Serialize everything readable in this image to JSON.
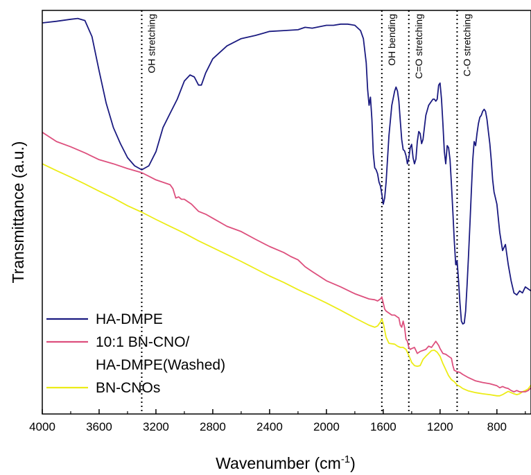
{
  "chart_data": {
    "type": "line",
    "xlabel_main": "Wavenumber (cm",
    "xlabel_sup": "-1",
    "xlabel_close": ")",
    "ylabel": "Transmittance (a.u.)",
    "xlim": [
      4000,
      560
    ],
    "x_reversed": true,
    "ylim": [
      0,
      100
    ],
    "y_ticks_shown": false,
    "x_ticks": [
      4000,
      3600,
      3200,
      2800,
      2400,
      2000,
      1600,
      1200,
      800
    ],
    "x_tick_labels": [
      "4000",
      "3600",
      "3200",
      "2800",
      "2400",
      "2000",
      "1600",
      "1200",
      "800"
    ],
    "legend_position": "bottom-left",
    "annotations": [
      {
        "x": 3300,
        "label": "OH stretching"
      },
      {
        "x": 1610,
        "label": "OH bending"
      },
      {
        "x": 1420,
        "label": "C=O stretching"
      },
      {
        "x": 1080,
        "label": "C-O stretching"
      }
    ],
    "series": [
      {
        "name": "HA-DMPE",
        "legend_lines": [
          "HA-DMPE"
        ],
        "color": "#1a1a80",
        "x": [
          4000,
          3900,
          3800,
          3750,
          3700,
          3650,
          3600,
          3550,
          3500,
          3450,
          3400,
          3350,
          3300,
          3250,
          3200,
          3150,
          3100,
          3050,
          3000,
          2960,
          2930,
          2900,
          2880,
          2850,
          2800,
          2700,
          2600,
          2500,
          2400,
          2300,
          2200,
          2150,
          2100,
          2000,
          1950,
          1900,
          1850,
          1800,
          1760,
          1740,
          1720,
          1710,
          1700,
          1690,
          1680,
          1670,
          1660,
          1650,
          1640,
          1630,
          1620,
          1610,
          1600,
          1590,
          1580,
          1560,
          1540,
          1520,
          1510,
          1500,
          1490,
          1480,
          1470,
          1460,
          1450,
          1440,
          1430,
          1420,
          1410,
          1400,
          1390,
          1380,
          1370,
          1360,
          1350,
          1340,
          1330,
          1320,
          1300,
          1280,
          1260,
          1250,
          1240,
          1230,
          1220,
          1210,
          1200,
          1190,
          1180,
          1170,
          1160,
          1150,
          1140,
          1130,
          1120,
          1110,
          1100,
          1090,
          1080,
          1070,
          1060,
          1050,
          1040,
          1030,
          1020,
          1010,
          1000,
          990,
          980,
          970,
          960,
          950,
          940,
          930,
          920,
          910,
          900,
          890,
          880,
          870,
          860,
          850,
          840,
          830,
          820,
          800,
          780,
          760,
          740,
          720,
          700,
          680,
          660,
          640,
          620,
          600,
          580,
          560
        ],
        "y": [
          96.9,
          97.3,
          97.8,
          98.0,
          97.5,
          93.5,
          85.0,
          77.0,
          71.0,
          67.0,
          63.5,
          61.5,
          60.5,
          61.5,
          65.0,
          71.0,
          74.5,
          78.0,
          82.5,
          84.0,
          83.5,
          81.5,
          81.5,
          84.5,
          88.0,
          91.2,
          93.0,
          93.8,
          94.8,
          95.0,
          95.2,
          95.8,
          95.6,
          96.3,
          96.3,
          96.6,
          96.6,
          96.3,
          95.0,
          93.0,
          87.0,
          80.5,
          76.5,
          78.5,
          73.0,
          64.5,
          61.0,
          60.5,
          59.5,
          57.5,
          56.5,
          54.5,
          52.0,
          53.5,
          57.5,
          69.0,
          76.5,
          80.0,
          81.0,
          80.0,
          77.5,
          72.5,
          68.0,
          65.5,
          65.2,
          64.0,
          62.0,
          63.5,
          66.0,
          66.8,
          63.5,
          62.0,
          63.2,
          67.5,
          70.0,
          69.5,
          67.0,
          68.0,
          74.0,
          76.5,
          77.5,
          78.0,
          78.0,
          77.5,
          78.0,
          81.5,
          82.0,
          78.0,
          72.0,
          65.0,
          62.0,
          66.5,
          66.0,
          63.0,
          57.0,
          50.0,
          43.0,
          37.0,
          38.0,
          33.0,
          27.5,
          23.0,
          22.3,
          22.5,
          25.5,
          32.0,
          39.0,
          47.0,
          55.0,
          63.0,
          67.5,
          66.5,
          69.5,
          72.0,
          73.5,
          74.0,
          75.0,
          75.5,
          75.0,
          73.0,
          70.0,
          67.0,
          63.0,
          58.0,
          55.0,
          52.0,
          45.0,
          40.5,
          42.0,
          37.0,
          33.0,
          30.0,
          29.5,
          30.5,
          30.0,
          31.5,
          31.0,
          30.5
        ]
      },
      {
        "name": "10:1 BN-CNO/ HA-DMPE(Washed)",
        "legend_lines": [
          "10:1 BN-CNO/",
          "HA-DMPE(Washed)"
        ],
        "color": "#dd4f7d",
        "x": [
          4000,
          3900,
          3800,
          3700,
          3600,
          3500,
          3400,
          3300,
          3200,
          3100,
          3080,
          3060,
          3040,
          3020,
          3000,
          2950,
          2900,
          2850,
          2800,
          2700,
          2600,
          2500,
          2400,
          2300,
          2250,
          2200,
          2150,
          2100,
          2000,
          1900,
          1800,
          1700,
          1660,
          1640,
          1620,
          1610,
          1600,
          1590,
          1580,
          1560,
          1540,
          1520,
          1500,
          1490,
          1480,
          1470,
          1460,
          1450,
          1440,
          1430,
          1420,
          1410,
          1400,
          1380,
          1360,
          1340,
          1300,
          1280,
          1260,
          1240,
          1230,
          1220,
          1210,
          1200,
          1180,
          1160,
          1140,
          1120,
          1110,
          1100,
          1080,
          1060,
          1040,
          1000,
          950,
          900,
          850,
          800,
          780,
          760,
          740,
          720,
          700,
          680,
          660,
          640,
          620,
          600,
          580,
          560
        ],
        "y": [
          69.8,
          67.5,
          66.2,
          64.7,
          63.0,
          62.0,
          60.8,
          59.8,
          58.0,
          56.8,
          55.8,
          53.5,
          53.8,
          53.2,
          53.2,
          52.0,
          50.2,
          49.5,
          48.5,
          46.5,
          45.2,
          43.3,
          41.5,
          40.0,
          39.0,
          38.2,
          36.5,
          35.3,
          33.0,
          31.5,
          29.8,
          28.5,
          28.3,
          28.0,
          28.5,
          29.0,
          27.5,
          26.0,
          25.5,
          25.0,
          24.5,
          24.5,
          24.0,
          23.8,
          22.0,
          21.5,
          23.0,
          21.5,
          18.5,
          18.0,
          16.5,
          16.0,
          16.2,
          16.5,
          15.0,
          15.5,
          16.0,
          16.8,
          16.5,
          17.5,
          18.0,
          17.5,
          17.0,
          16.2,
          15.0,
          14.8,
          14.3,
          13.8,
          12.0,
          10.8,
          10.5,
          10.3,
          9.8,
          9.0,
          8.2,
          7.8,
          7.5,
          7.0,
          6.5,
          6.8,
          6.5,
          6.3,
          5.8,
          5.5,
          5.8,
          5.5,
          5.5,
          5.5,
          5.8,
          6.5
        ]
      },
      {
        "name": "BN-CNOs",
        "legend_lines": [
          "BN-CNOs"
        ],
        "color": "#ecec16",
        "x": [
          4000,
          3900,
          3800,
          3700,
          3600,
          3500,
          3400,
          3300,
          3200,
          3100,
          3000,
          2900,
          2800,
          2700,
          2600,
          2500,
          2400,
          2300,
          2200,
          2150,
          2100,
          2000,
          1900,
          1800,
          1700,
          1660,
          1640,
          1620,
          1610,
          1600,
          1580,
          1560,
          1520,
          1500,
          1480,
          1460,
          1440,
          1420,
          1400,
          1380,
          1360,
          1340,
          1320,
          1300,
          1280,
          1260,
          1240,
          1220,
          1200,
          1180,
          1160,
          1140,
          1120,
          1100,
          1080,
          1060,
          1040,
          1000,
          950,
          900,
          850,
          800,
          780,
          760,
          740,
          720,
          700,
          680,
          660,
          640,
          620,
          600,
          580,
          560
        ],
        "y": [
          62.0,
          60.3,
          58.7,
          57.0,
          55.2,
          53.5,
          51.6,
          50.0,
          48.2,
          46.5,
          44.8,
          42.9,
          41.2,
          39.5,
          37.8,
          36.0,
          34.2,
          32.6,
          30.8,
          30.0,
          29.2,
          27.5,
          25.7,
          23.8,
          22.0,
          21.5,
          21.8,
          22.8,
          23.5,
          22.5,
          19.0,
          17.5,
          17.3,
          16.8,
          16.5,
          16.5,
          16.0,
          14.5,
          12.8,
          12.0,
          11.8,
          12.0,
          13.5,
          14.3,
          15.0,
          15.7,
          15.8,
          15.3,
          14.3,
          12.5,
          11.0,
          9.5,
          8.5,
          8.0,
          7.2,
          6.8,
          6.3,
          5.7,
          5.3,
          5.0,
          4.8,
          4.5,
          4.5,
          4.8,
          5.2,
          5.6,
          5.3,
          5.0,
          4.8,
          5.0,
          5.5,
          5.8,
          6.2,
          7.2
        ]
      }
    ]
  }
}
